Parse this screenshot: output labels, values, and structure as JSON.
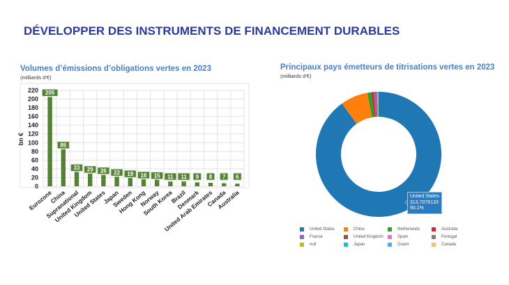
{
  "page": {
    "title": "DÉVELOPPER DES INSTRUMENTS DE FINANCEMENT DURABLES"
  },
  "left_chart": {
    "title": "Volumes d’émissions d’obligations vertes en 2023",
    "subtitle": "(milliards d’€)"
  },
  "right_chart": {
    "title": "Principaux pays émetteurs de titrisations vertes en 2023",
    "subtitle": "(milliards d’€)",
    "tooltip": {
      "label": "United States",
      "value": "313,7076133",
      "percent": "90,1%"
    }
  },
  "colors": {
    "title": "#2a3a9a",
    "chart_title": "#4a7fc1",
    "bar": "#548235",
    "label_bg": "#548235"
  },
  "chart_data": [
    {
      "type": "bar",
      "title": "Volumes d’émissions d’obligations vertes en 2023",
      "subtitle": "(milliards d’€)",
      "xlabel": "",
      "ylabel": "bn €",
      "ylim": [
        0,
        220
      ],
      "yticks": [
        0,
        20,
        40,
        60,
        80,
        100,
        120,
        140,
        160,
        180,
        200,
        220
      ],
      "grid": true,
      "categories": [
        "Eurozone",
        "China",
        "Supranational",
        "United Kingdom",
        "United States",
        "Japan",
        "Sweden",
        "Hong Kong",
        "Norway",
        "South Korea",
        "Brazil",
        "Denmark",
        "United Arab Emirates",
        "Canada",
        "Australia"
      ],
      "values": [
        205,
        85,
        33,
        29,
        26,
        22,
        19,
        16,
        15,
        11,
        11,
        9,
        8,
        7,
        6
      ],
      "data_labels": true
    },
    {
      "type": "pie",
      "subtype": "donut",
      "title": "Principaux pays émetteurs de titrisations vertes en 2023",
      "subtitle": "(milliards d’€)",
      "legend_position": "bottom",
      "categories": [
        "United States",
        "China",
        "Netherlands",
        "Australia",
        "France",
        "United Kingdom",
        "Spain",
        "Portugal",
        "null",
        "Japan",
        "Guam",
        "Canada"
      ],
      "values": [
        313.7076133,
        24.5,
        3.6,
        2.0,
        1.6,
        0.9,
        0.6,
        0.5,
        0.3,
        0.2,
        0.2,
        0.1
      ],
      "colors": [
        "#1f77b4",
        "#ff7f0e",
        "#2ca02c",
        "#d62728",
        "#9467bd",
        "#8c564b",
        "#e377c2",
        "#7f7f7f",
        "#bcbd22",
        "#17becf",
        "#5aa9e6",
        "#ffbb78"
      ],
      "annotations": [
        {
          "label": "United States",
          "value": "313,7076133",
          "percent": "90,1%"
        }
      ]
    }
  ]
}
